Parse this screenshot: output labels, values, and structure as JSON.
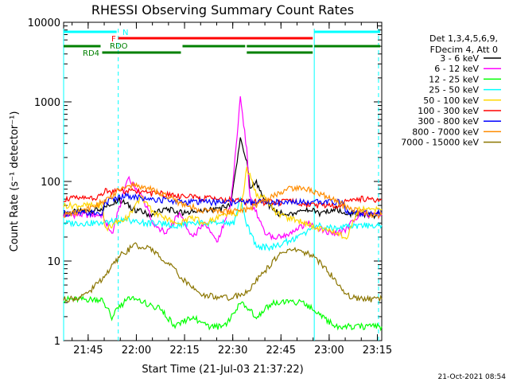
{
  "chart_data": {
    "type": "line",
    "title": "RHESSI Observing Summary Count Rates",
    "xlabel": "Start Time (21-Jul-03 21:37:22)",
    "ylabel": "Count Rate (s⁻¹ detector⁻¹)",
    "yscale": "log",
    "ylim": [
      1,
      10000
    ],
    "xlim_minutes": [
      0,
      99
    ],
    "x_ticks": [
      "21:45",
      "22:00",
      "22:15",
      "22:30",
      "22:45",
      "23:00",
      "23:15"
    ],
    "y_ticks": [
      "1",
      "10",
      "100",
      "1000",
      "10000"
    ],
    "legend_header": [
      "Det 1,3,4,5,6,9,",
      "FDecim 4, Att 0"
    ],
    "legend_placement": "right",
    "timestamp": "21-Oct-2021 08:54",
    "series": [
      {
        "name": "3 - 6 keV",
        "color": "#000000",
        "x": [
          0,
          12,
          17,
          22,
          27,
          32,
          37,
          42,
          47,
          52,
          55,
          57,
          58,
          60,
          62,
          65,
          67,
          70,
          75,
          80,
          85,
          88,
          92,
          96,
          99
        ],
        "y": [
          40,
          45,
          60,
          45,
          38,
          45,
          40,
          42,
          45,
          50,
          350,
          180,
          80,
          100,
          60,
          45,
          40,
          38,
          45,
          40,
          45,
          40,
          38,
          38,
          38
        ]
      },
      {
        "name": "6 - 12 keV",
        "color": "#ff00ff",
        "x": [
          0,
          12,
          15,
          20,
          24,
          28,
          32,
          36,
          40,
          44,
          48,
          52,
          55,
          57,
          58,
          60,
          62,
          65,
          68,
          72,
          76,
          80,
          84,
          88,
          92,
          96,
          99
        ],
        "y": [
          38,
          38,
          22,
          110,
          70,
          30,
          22,
          40,
          20,
          30,
          18,
          50,
          1100,
          250,
          60,
          40,
          25,
          20,
          20,
          25,
          30,
          25,
          22,
          25,
          40,
          38,
          38
        ]
      },
      {
        "name": "12 - 25 keV",
        "color": "#00ff00",
        "x": [
          0,
          12,
          15,
          20,
          25,
          30,
          35,
          40,
          45,
          50,
          55,
          60,
          65,
          70,
          75,
          80,
          85,
          90,
          95,
          99
        ],
        "y": [
          3.3,
          3.3,
          2,
          3.5,
          3,
          2.5,
          1.5,
          2,
          1.5,
          1.5,
          3,
          2,
          3,
          3,
          3,
          2,
          1.5,
          1.5,
          1.5,
          1.5
        ]
      },
      {
        "name": "25 - 50 keV",
        "color": "#00ffff",
        "x": [
          0,
          12,
          17,
          20,
          25,
          30,
          35,
          40,
          45,
          50,
          53,
          55,
          57,
          60,
          65,
          70,
          75,
          80,
          85,
          88,
          92,
          96,
          99
        ],
        "y": [
          30,
          30,
          32,
          33,
          30,
          30,
          28,
          30,
          30,
          30,
          30,
          60,
          30,
          15,
          15,
          18,
          22,
          28,
          25,
          28,
          28,
          28,
          28
        ]
      },
      {
        "name": "50 - 100 keV",
        "color": "#ffd700",
        "x": [
          0,
          12,
          13,
          16,
          20,
          24,
          28,
          32,
          36,
          40,
          44,
          48,
          52,
          55,
          57,
          60,
          63,
          66,
          70,
          75,
          80,
          85,
          88,
          92,
          96,
          99
        ],
        "y": [
          50,
          50,
          25,
          30,
          35,
          65,
          40,
          35,
          30,
          35,
          30,
          35,
          40,
          40,
          150,
          70,
          60,
          40,
          35,
          30,
          25,
          22,
          20,
          45,
          45,
          45
        ]
      },
      {
        "name": "100 - 300 keV",
        "color": "#ff0000",
        "x": [
          0,
          6,
          12,
          13,
          17,
          22,
          27,
          32,
          37,
          42,
          47,
          52,
          57,
          62,
          67,
          72,
          77,
          82,
          87,
          88,
          92,
          96,
          99
        ],
        "y": [
          60,
          62,
          65,
          75,
          75,
          75,
          70,
          70,
          65,
          62,
          60,
          58,
          55,
          55,
          55,
          55,
          50,
          50,
          50,
          62,
          60,
          60,
          60
        ]
      },
      {
        "name": "300 - 800 keV",
        "color": "#0000ff",
        "x": [
          0,
          12,
          13,
          18,
          22,
          27,
          32,
          37,
          42,
          47,
          52,
          57,
          62,
          67,
          72,
          77,
          82,
          87,
          88,
          92,
          96,
          99
        ],
        "y": [
          40,
          40,
          55,
          65,
          65,
          60,
          58,
          55,
          55,
          55,
          55,
          55,
          55,
          55,
          55,
          55,
          55,
          55,
          42,
          40,
          40,
          40
        ]
      },
      {
        "name": "800 - 7000 keV",
        "color": "#ff8c00",
        "x": [
          0,
          6,
          12,
          18,
          22,
          27,
          32,
          37,
          42,
          47,
          52,
          57,
          62,
          67,
          72,
          77,
          82,
          87,
          92,
          96,
          99
        ],
        "y": [
          38,
          42,
          55,
          80,
          90,
          80,
          65,
          52,
          45,
          42,
          42,
          44,
          55,
          72,
          85,
          78,
          65,
          50,
          42,
          38,
          38
        ]
      },
      {
        "name": "7000 - 15000 keV",
        "color": "#8b7500",
        "x": [
          0,
          6,
          12,
          18,
          22,
          27,
          32,
          37,
          42,
          47,
          52,
          57,
          62,
          67,
          72,
          77,
          82,
          87,
          92,
          96,
          99
        ],
        "y": [
          3.3,
          3.5,
          6,
          12,
          16,
          14,
          10,
          6,
          4,
          3.5,
          3.5,
          4,
          7,
          12,
          14,
          12,
          8,
          4,
          3.3,
          3.3,
          3.3
        ]
      }
    ],
    "state_bars": [
      {
        "label": "N",
        "color": "#00ffff",
        "segments": [
          [
            0,
            17
          ],
          [
            78,
            99
          ]
        ]
      },
      {
        "label": "F",
        "color": "#ff0000",
        "segments": [
          [
            17,
            78
          ]
        ]
      },
      {
        "label": "RDO",
        "color": "#008000",
        "segments": [
          [
            0,
            12
          ],
          [
            37,
            57
          ],
          [
            57,
            78
          ],
          [
            78,
            99
          ]
        ]
      },
      {
        "label": "RD4",
        "color": "#008000",
        "segments": [
          [
            12,
            37
          ],
          [
            57,
            78
          ]
        ]
      }
    ],
    "vlines": [
      {
        "x": 0,
        "color": "#00ffff",
        "style": "solid"
      },
      {
        "x": 17,
        "color": "#00ffff",
        "style": "dashed"
      },
      {
        "x": 78,
        "color": "#00ffff",
        "style": "solid"
      },
      {
        "x": 98,
        "color": "#00ffff",
        "style": "dashed"
      }
    ]
  }
}
